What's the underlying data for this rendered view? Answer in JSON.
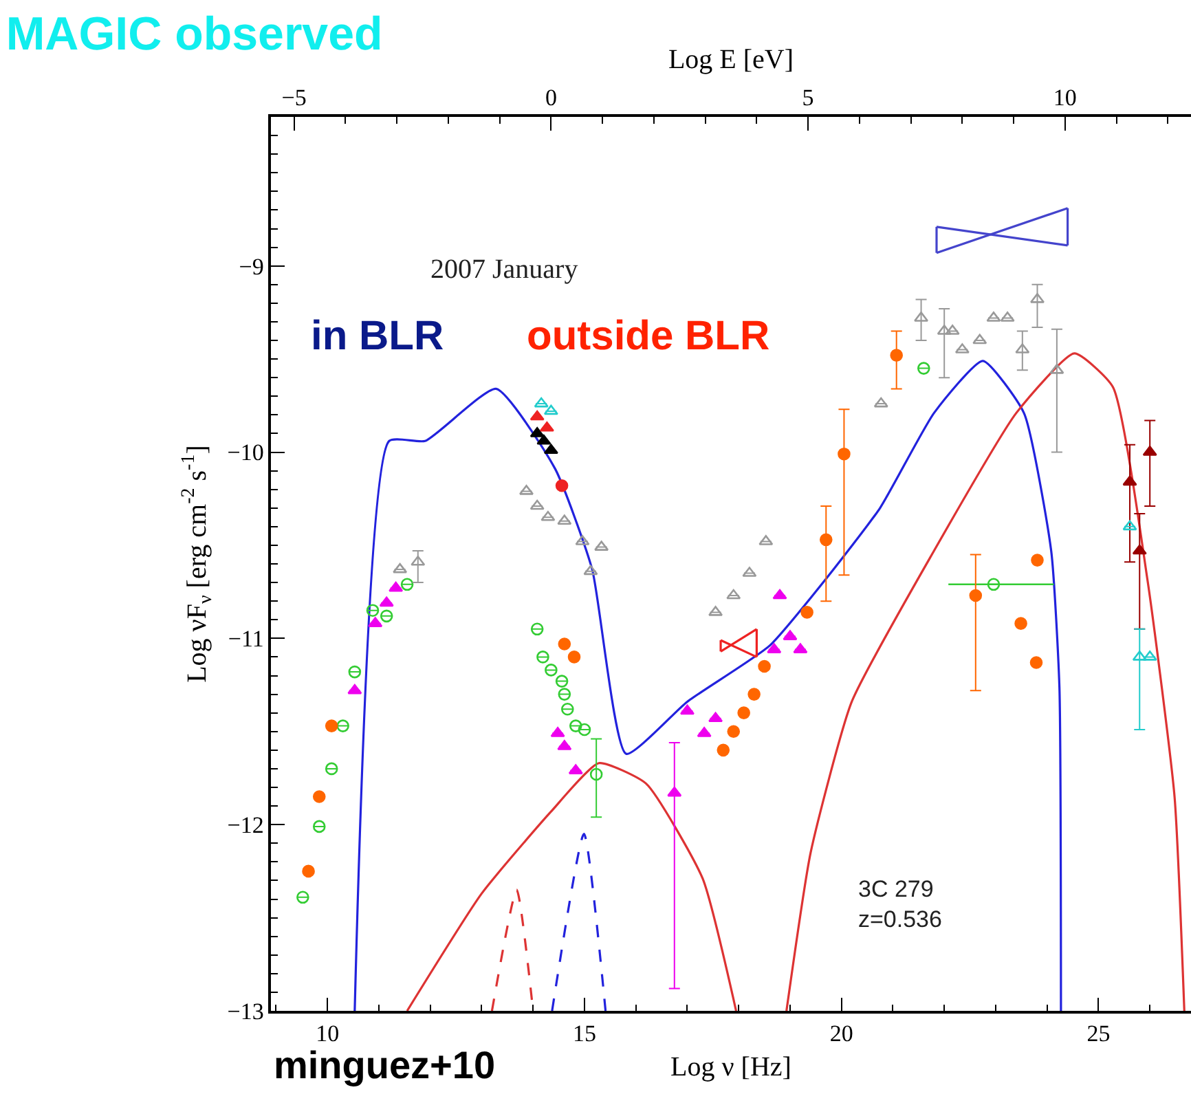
{
  "chart_data": {
    "type": "scatter",
    "title": "MAGIC observed",
    "xlabel": "Log ν [Hz]",
    "x2label": "Log E [eV]",
    "ylabel": "Log νF$_{ν}$ [erg cm$^{-2}$ s$^{-1}$]",
    "xlim": [
      8.9,
      26.8
    ],
    "xticks": [
      10,
      15,
      20,
      25
    ],
    "x2lim": [
      -5.45,
      12.45
    ],
    "x2ticks": [
      -5,
      0,
      5,
      10
    ],
    "ylim": [
      -13,
      -8.2
    ],
    "yticks": [
      -13,
      -12,
      -11,
      -10,
      -9
    ],
    "annotations": [
      "2007 January",
      "in BLR",
      "outside BLR",
      "3C 279\nz=0.536",
      "minguez+10"
    ],
    "series": [
      {
        "type": "line",
        "color": "#2222dd",
        "line_style": "solid",
        "x": [
          10.53,
          11.2,
          11.9,
          13.28,
          14.43,
          15.15,
          15.81,
          17.0,
          18.6,
          19.7,
          20.75,
          21.8,
          22.75,
          23.55,
          24.08,
          24.24,
          24.27
        ],
        "values": [
          -13,
          -9.94,
          -9.94,
          -9.66,
          -10.09,
          -10.63,
          -11.62,
          -11.34,
          -11.04,
          -10.68,
          -10.3,
          -9.79,
          -9.51,
          -9.79,
          -10.53,
          -11.26,
          -13
        ]
      },
      {
        "type": "line",
        "color": "#dd3333",
        "line_style": "solid",
        "x": [
          11.55,
          13.0,
          14.35,
          15.28,
          16.2,
          17.3,
          17.95
        ],
        "values": [
          -13,
          -12.37,
          -11.93,
          -11.67,
          -11.78,
          -12.29,
          -13
        ]
      },
      {
        "type": "line",
        "color": "#dd3333",
        "line_style": "solid",
        "x": [
          18.93,
          19.4,
          20.2,
          21.8,
          23.4,
          24.53,
          25.28,
          25.95,
          26.48,
          26.67
        ],
        "values": [
          -13,
          -12.15,
          -11.34,
          -10.53,
          -9.79,
          -9.47,
          -9.65,
          -10.68,
          -11.85,
          -13
        ]
      },
      {
        "type": "line",
        "color": "#dd3333",
        "line_style": "dashed",
        "x": [
          13.2,
          13.68,
          14.0
        ],
        "values": [
          -13,
          -12.35,
          -13
        ]
      },
      {
        "type": "line",
        "color": "#2222dd",
        "line_style": "dashed",
        "x": [
          14.37,
          14.99,
          15.41
        ],
        "values": [
          -13,
          -12.05,
          -13
        ]
      },
      {
        "type": "line",
        "color": "#4444cc",
        "line_style": "solid",
        "x": [
          21.85,
          24.4
        ],
        "values": [
          -8.79,
          -8.89
        ],
        "errors": [
          [
            -8.93,
            -8.79
          ],
          [
            -8.89,
            -8.69
          ]
        ]
      },
      {
        "type": "line",
        "color": "#4444cc",
        "line_style": "solid",
        "x": [
          21.85,
          24.4
        ],
        "values": [
          -8.93,
          -8.69
        ]
      },
      {
        "type": "line",
        "color": "#ee2222",
        "line_style": "solid",
        "x": [
          17.65,
          18.35
        ],
        "values": [
          -11.01,
          -11.1
        ],
        "errors": [
          [
            -11.07,
            -11.01
          ],
          [
            -11.1,
            -10.95
          ]
        ]
      },
      {
        "type": "line",
        "color": "#ee2222",
        "line_style": "solid",
        "x": [
          17.65,
          18.35
        ],
        "values": [
          -11.07,
          -10.95
        ]
      },
      {
        "type": "scatter",
        "color": "#33cc33",
        "marker": "circle-open",
        "x": [
          9.52,
          9.84,
          10.08,
          10.3,
          10.53,
          10.88,
          11.15,
          11.55,
          14.08,
          14.19,
          14.35,
          14.56,
          14.61,
          14.67,
          14.83,
          15.0,
          15.23,
          21.6,
          22.96
        ],
        "values": [
          -12.39,
          -12.01,
          -11.7,
          -11.47,
          -11.18,
          -10.85,
          -10.88,
          -10.71,
          -10.95,
          -11.1,
          -11.17,
          -11.23,
          -11.3,
          -11.38,
          -11.47,
          -11.49,
          -11.73,
          -9.55,
          -10.71
        ],
        "errors": [
          null,
          null,
          null,
          null,
          null,
          null,
          null,
          null,
          null,
          null,
          null,
          null,
          null,
          null,
          null,
          null,
          [
            -11.96,
            -11.54
          ],
          null,
          null
        ],
        "xerrors": [
          null,
          null,
          null,
          null,
          null,
          null,
          null,
          null,
          null,
          null,
          null,
          null,
          null,
          null,
          null,
          null,
          null,
          null,
          [
            22.08,
            24.13
          ]
        ]
      },
      {
        "type": "scatter",
        "color": "#ff6600",
        "marker": "circle",
        "x": [
          9.63,
          9.84,
          10.08,
          14.61,
          14.8,
          17.7,
          17.9,
          18.1,
          18.3,
          18.5,
          19.33,
          19.7,
          20.05,
          21.07,
          22.61,
          23.49,
          23.81,
          23.79
        ],
        "values": [
          -12.25,
          -11.85,
          -11.47,
          -11.03,
          -11.1,
          -11.6,
          -11.5,
          -11.4,
          -11.3,
          -11.15,
          -10.86,
          -10.47,
          -10.01,
          -9.48,
          -10.77,
          -10.92,
          -10.58,
          -11.13
        ],
        "errors": [
          null,
          null,
          null,
          null,
          null,
          null,
          null,
          null,
          null,
          null,
          null,
          [
            -10.8,
            -10.29
          ],
          [
            -10.66,
            -9.77
          ],
          [
            -9.66,
            -9.35
          ],
          [
            -11.28,
            -10.55
          ],
          null,
          null,
          null
        ]
      },
      {
        "type": "scatter",
        "color": "#ee00ee",
        "marker": "triangle",
        "x": [
          10.53,
          10.93,
          11.15,
          11.33,
          14.48,
          14.61,
          14.83,
          16.75,
          17.0,
          17.33,
          17.55,
          18.69,
          18.8,
          19.0,
          19.2
        ],
        "values": [
          -11.28,
          -10.92,
          -10.81,
          -10.73,
          -11.51,
          -11.58,
          -11.71,
          -11.83,
          -11.39,
          -11.51,
          -11.43,
          -11.06,
          -10.77,
          -10.99,
          -11.06
        ],
        "errors": [
          null,
          null,
          null,
          null,
          null,
          null,
          null,
          [
            -12.88,
            -11.56
          ],
          null,
          null,
          null,
          null,
          null,
          null,
          null
        ]
      },
      {
        "type": "scatter",
        "color": "#999999",
        "marker": "triangle-open",
        "x": [
          11.41,
          11.76,
          13.87,
          14.08,
          14.29,
          14.61,
          14.96,
          15.12,
          15.33,
          17.55,
          17.9,
          18.21,
          18.53,
          20.77,
          21.55,
          22.0,
          22.16,
          22.35,
          22.69,
          22.96,
          23.23,
          23.52,
          23.81,
          24.19
        ],
        "values": [
          -10.63,
          -10.59,
          -10.21,
          -10.29,
          -10.35,
          -10.37,
          -10.48,
          -10.64,
          -10.51,
          -10.86,
          -10.77,
          -10.65,
          -10.48,
          -9.74,
          -9.28,
          -9.35,
          -9.35,
          -9.45,
          -9.4,
          -9.28,
          -9.28,
          -9.45,
          -9.18,
          -9.56
        ],
        "errors": [
          null,
          [
            -10.7,
            -10.53
          ],
          null,
          null,
          null,
          null,
          null,
          null,
          null,
          null,
          null,
          null,
          null,
          null,
          [
            -9.4,
            -9.18
          ],
          [
            -9.6,
            -9.23
          ],
          null,
          null,
          null,
          null,
          null,
          [
            -9.56,
            -9.35
          ],
          [
            -9.33,
            -9.1
          ],
          [
            -10.0,
            -9.34
          ]
        ]
      },
      {
        "type": "scatter",
        "color": "#000000",
        "marker": "triangle",
        "x": [
          14.08,
          14.21,
          14.35
        ],
        "values": [
          -9.9,
          -9.94,
          -9.99
        ]
      },
      {
        "color": "#ee2222",
        "marker": "triangle",
        "x": [
          14.08,
          14.27
        ],
        "values": [
          -9.81,
          -9.87
        ]
      },
      {
        "color": "#990000",
        "marker": "triangle",
        "x": [
          25.61,
          26.0,
          25.8
        ],
        "values": [
          -10.16,
          -10.0,
          -10.53
        ],
        "errors": [
          [
            -10.59,
            -9.96
          ],
          [
            -10.29,
            -9.83
          ],
          [
            -10.95,
            -10.33
          ]
        ]
      },
      {
        "type": "scatter",
        "color": "#ee2222",
        "marker": "circle",
        "x": [
          14.56
        ],
        "values": [
          -10.18
        ]
      },
      {
        "type": "scatter",
        "color": "#22cccc",
        "marker": "triangle-open",
        "x": [
          14.16,
          14.35,
          25.61,
          25.8,
          26.0
        ],
        "values": [
          -9.74,
          -9.78,
          -10.4,
          -11.1,
          -11.1
        ],
        "errors": [
          null,
          null,
          null,
          [
            -11.49,
            -10.95
          ],
          null
        ]
      }
    ]
  }
}
